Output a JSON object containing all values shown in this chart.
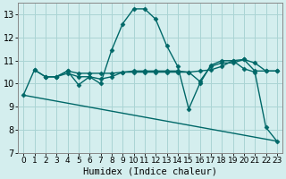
{
  "xlabel": "Humidex (Indice chaleur)",
  "bg_color": "#d4eeee",
  "grid_color": "#aad4d4",
  "line_color": "#006868",
  "xlim": [
    -0.5,
    23.5
  ],
  "ylim": [
    7,
    13.5
  ],
  "yticks": [
    7,
    8,
    9,
    10,
    11,
    12,
    13
  ],
  "xticks": [
    0,
    1,
    2,
    3,
    4,
    5,
    6,
    7,
    8,
    9,
    10,
    11,
    12,
    13,
    14,
    15,
    16,
    17,
    18,
    19,
    20,
    21,
    22,
    23
  ],
  "lines": [
    {
      "x": [
        0,
        1,
        2,
        3,
        4,
        5,
        6,
        7,
        8,
        9,
        10,
        11,
        12,
        13,
        14,
        15,
        16,
        17,
        18,
        19,
        20,
        21,
        22,
        23
      ],
      "y": [
        9.5,
        10.6,
        10.3,
        10.3,
        10.55,
        9.95,
        10.3,
        10.0,
        11.45,
        12.6,
        13.25,
        13.25,
        12.8,
        11.65,
        10.75,
        8.9,
        10.0,
        10.8,
        11.0,
        11.0,
        10.65,
        10.5,
        8.1,
        7.5
      ],
      "has_markers": true
    },
    {
      "x": [
        1,
        2,
        3,
        4,
        5,
        6,
        7,
        8,
        9,
        10,
        11,
        12,
        13,
        14,
        15,
        16,
        17,
        18,
        19,
        20,
        21,
        22,
        23
      ],
      "y": [
        10.6,
        10.3,
        10.3,
        10.55,
        10.45,
        10.45,
        10.45,
        10.45,
        10.5,
        10.5,
        10.5,
        10.5,
        10.5,
        10.5,
        10.5,
        10.55,
        10.6,
        10.75,
        11.0,
        11.05,
        10.55,
        10.55,
        10.55
      ],
      "has_markers": true
    },
    {
      "x": [
        2,
        3,
        4,
        5,
        6,
        7,
        8,
        9,
        10,
        11,
        12,
        13,
        14,
        15,
        16,
        17,
        18,
        19,
        20,
        21,
        22,
        23
      ],
      "y": [
        10.3,
        10.3,
        10.45,
        10.3,
        10.3,
        10.2,
        10.3,
        10.5,
        10.55,
        10.55,
        10.55,
        10.55,
        10.55,
        10.5,
        10.1,
        10.75,
        10.9,
        10.9,
        11.05,
        10.9,
        10.55,
        10.55
      ],
      "has_markers": true
    },
    {
      "x": [
        0,
        23
      ],
      "y": [
        9.5,
        7.5
      ],
      "has_markers": false
    }
  ],
  "marker": "D",
  "marker_size": 2.5,
  "line_width": 1.0,
  "tick_fontsize": 6.5,
  "label_fontsize": 7.5
}
